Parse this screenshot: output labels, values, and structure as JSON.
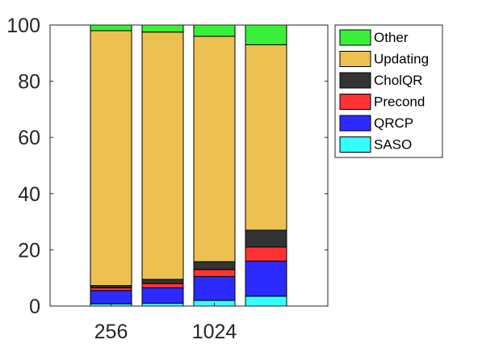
{
  "chart_data": {
    "type": "bar",
    "stacked": true,
    "categories": [
      "256",
      "",
      "1024",
      ""
    ],
    "x_tick_labels": [
      "256",
      "1024"
    ],
    "ylim": [
      0,
      100
    ],
    "yticks": [
      0,
      20,
      40,
      60,
      80,
      100
    ],
    "grid": false,
    "legend_position": "outside-top-right",
    "series": [
      {
        "name": "SASO",
        "color": "#33ffff",
        "values": [
          0.8,
          1.0,
          2.0,
          3.5
        ]
      },
      {
        "name": "QRCP",
        "color": "#2b2bff",
        "values": [
          4.7,
          5.5,
          8.5,
          12.5
        ]
      },
      {
        "name": "Precond",
        "color": "#ff3333",
        "values": [
          1.0,
          1.5,
          2.5,
          5.0
        ]
      },
      {
        "name": "CholQR",
        "color": "#333333",
        "values": [
          0.8,
          1.5,
          2.8,
          6.0
        ]
      },
      {
        "name": "Updating",
        "color": "#ecc151",
        "values": [
          90.7,
          88.0,
          80.2,
          66.0
        ]
      },
      {
        "name": "Other",
        "color": "#39f039",
        "values": [
          2.0,
          2.5,
          4.0,
          7.0
        ]
      }
    ]
  }
}
